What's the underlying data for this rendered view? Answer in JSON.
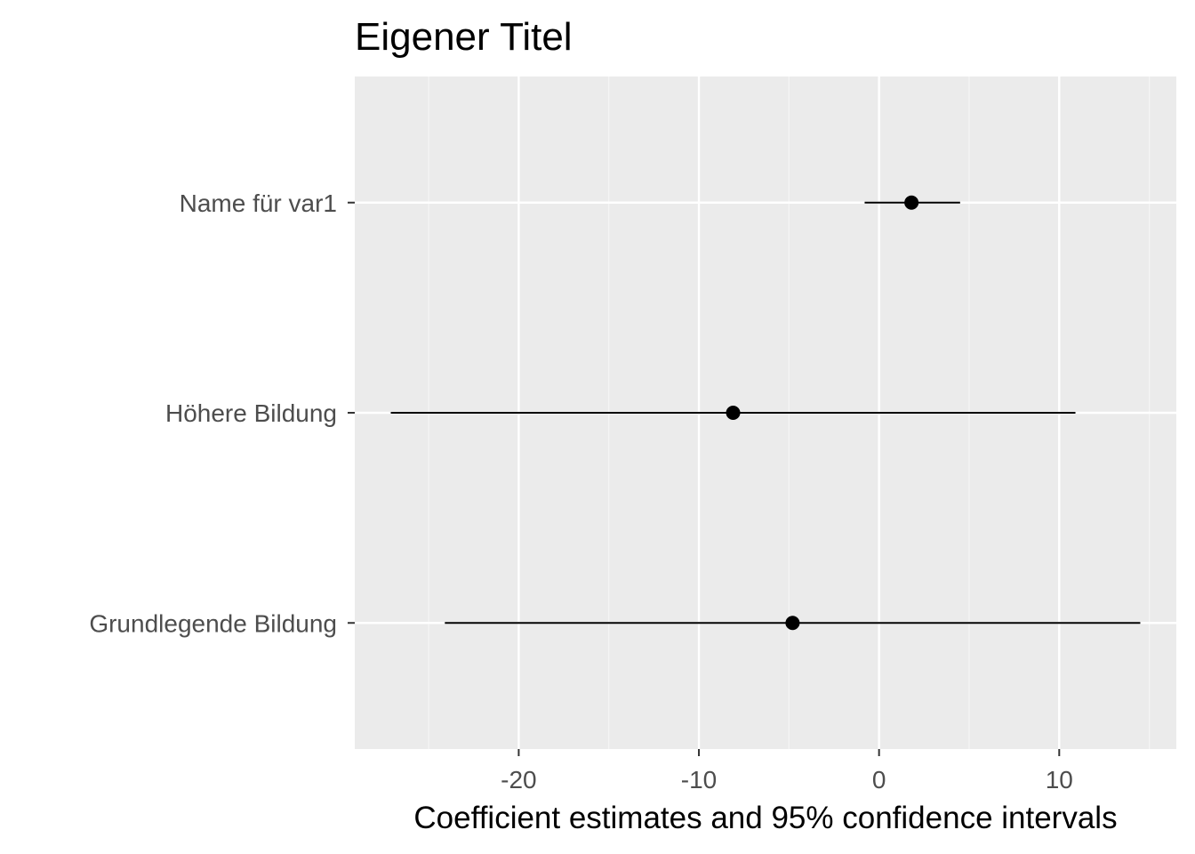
{
  "chart_data": {
    "type": "dot-whisker",
    "title": "Eigener Titel",
    "xlabel": "Coefficient estimates and 95% confidence intervals",
    "ylabel": "",
    "xlim": [
      -29.1,
      16.5
    ],
    "x_ticks": [
      -20,
      -10,
      0,
      10
    ],
    "x_tick_labels": [
      "-20",
      "-10",
      "0",
      "10"
    ],
    "grid": true,
    "legend": "none",
    "terms": [
      {
        "label": "Grundlegende Bildung",
        "estimate": -4.8,
        "low": -24.1,
        "high": 14.5
      },
      {
        "label": "Höhere Bildung",
        "estimate": -8.1,
        "low": -27.1,
        "high": 10.9
      },
      {
        "label": "Name für var1",
        "estimate": 1.8,
        "low": -0.8,
        "high": 4.5
      }
    ],
    "colors": {
      "panel_background": "#ebebeb",
      "grid_major": "#ffffff",
      "grid_minor": "#f5f5f5",
      "point": "#000000",
      "tick_label": "#4d4d4d"
    }
  }
}
